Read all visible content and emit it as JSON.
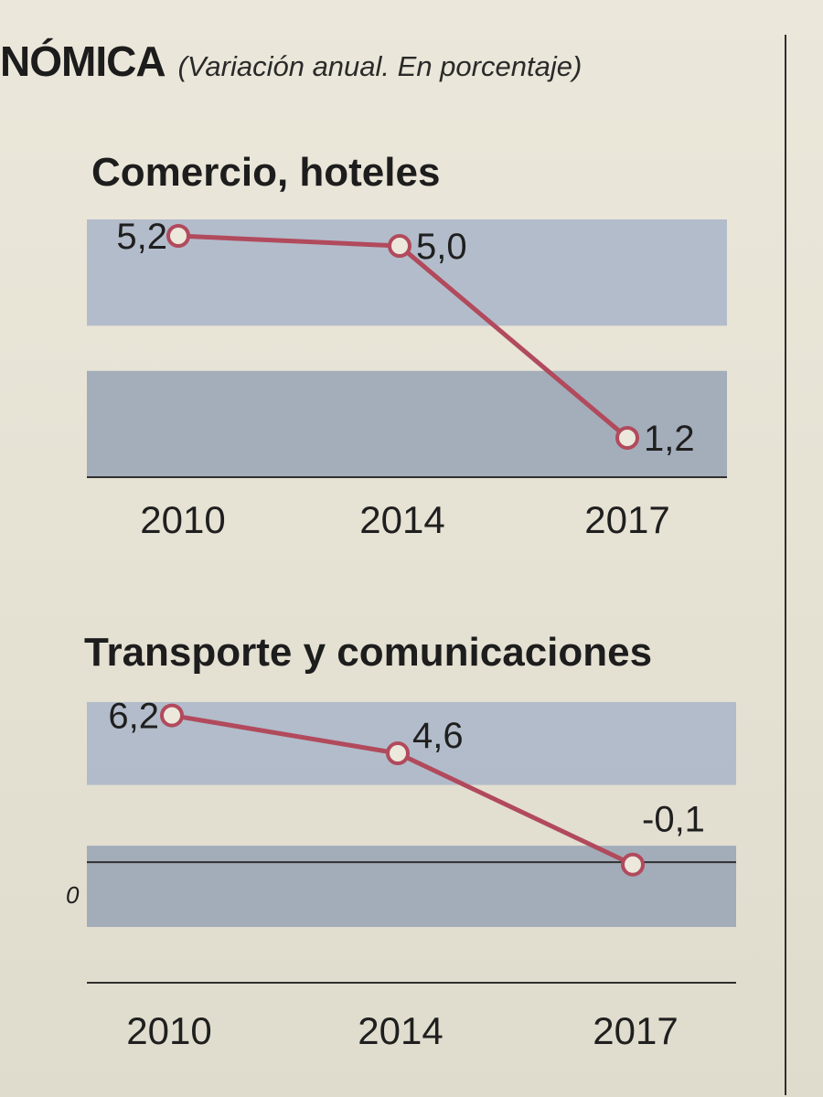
{
  "header": {
    "title": "NÓMICA",
    "subtitle": "(Variación anual. En porcentaje)"
  },
  "chart_data": [
    {
      "type": "line",
      "title": "Comercio, hoteles",
      "categories": [
        "2010",
        "2014",
        "2017"
      ],
      "series": [
        {
          "name": "Comercio, hoteles",
          "values": [
            5.2,
            5.0,
            1.2
          ]
        }
      ],
      "value_labels": [
        "5,2",
        "5,0",
        "1,2"
      ],
      "ylim": [
        1.0,
        5.2
      ],
      "band_ranges": [
        [
          4.0,
          5.2
        ],
        [
          1.0,
          2.2
        ]
      ],
      "colors": {
        "line": "#b14a5c",
        "band": "#a9b5c9",
        "band_dark": "#98a3b5",
        "axis": "#2f2f2f"
      }
    },
    {
      "type": "line",
      "title": "Transporte y comunicaciones",
      "categories": [
        "2010",
        "2014",
        "2017"
      ],
      "series": [
        {
          "name": "Transporte y comunicaciones",
          "values": [
            6.2,
            4.6,
            -0.1
          ]
        }
      ],
      "value_labels": [
        "6,2",
        "4,6",
        "-0,1"
      ],
      "zero_label": "0",
      "ylim": [
        -1.5,
        6.3
      ],
      "band_ranges": [
        [
          4.5,
          6.3
        ],
        [
          -1.5,
          0.0
        ]
      ],
      "colors": {
        "line": "#b14a5c",
        "band": "#a9b5c9",
        "band_dark": "#98a3b5",
        "axis": "#2f2f2f"
      }
    }
  ]
}
